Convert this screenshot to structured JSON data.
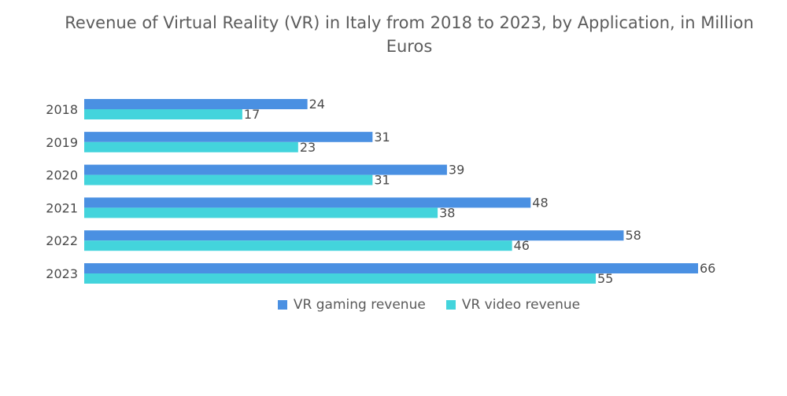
{
  "chart_data": {
    "type": "bar",
    "orientation": "horizontal",
    "title": "Revenue of Virtual Reality (VR) in Italy from 2018 to 2023, by Application, in Million Euros",
    "categories": [
      "2018",
      "2019",
      "2020",
      "2021",
      "2022",
      "2023"
    ],
    "series": [
      {
        "name": "VR gaming revenue",
        "color": "#4a90e2",
        "values": [
          24,
          31,
          39,
          48,
          58,
          66
        ]
      },
      {
        "name": "VR video revenue",
        "color": "#43d4dc",
        "values": [
          17,
          23,
          31,
          38,
          46,
          55
        ]
      }
    ],
    "xlim": [
      0,
      66
    ],
    "xlabel": "",
    "ylabel": "",
    "grid": false,
    "legend_position": "bottom-center"
  }
}
